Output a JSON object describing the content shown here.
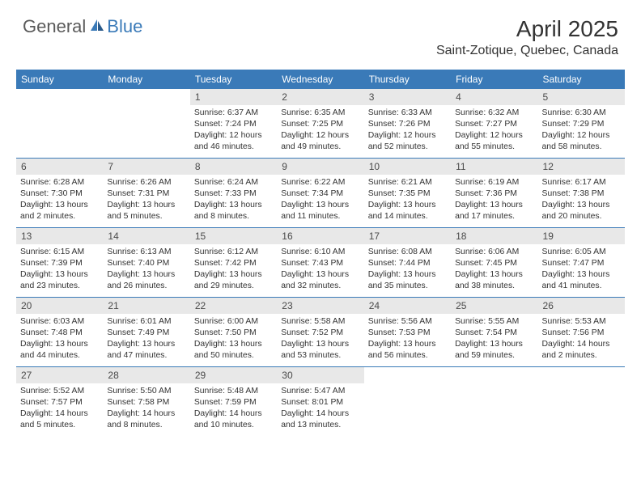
{
  "header": {
    "logo_part1": "General",
    "logo_part2": "Blue",
    "month_title": "April 2025",
    "location": "Saint-Zotique, Quebec, Canada"
  },
  "styling": {
    "header_bg": "#3a7ab8",
    "header_text_color": "#ffffff",
    "day_number_bg": "#e8e8e8",
    "day_number_color": "#4a4a4a",
    "body_bg": "#ffffff",
    "text_color": "#333333",
    "divider_color": "#3a7ab8",
    "title_fontsize": 28,
    "location_fontsize": 16,
    "weekday_fontsize": 12,
    "daynum_fontsize": 12,
    "detail_fontsize": 10.4
  },
  "weekdays": [
    "Sunday",
    "Monday",
    "Tuesday",
    "Wednesday",
    "Thursday",
    "Friday",
    "Saturday"
  ],
  "weeks": [
    [
      null,
      null,
      {
        "n": "1",
        "sunrise": "6:37 AM",
        "sunset": "7:24 PM",
        "daylight": "12 hours and 46 minutes."
      },
      {
        "n": "2",
        "sunrise": "6:35 AM",
        "sunset": "7:25 PM",
        "daylight": "12 hours and 49 minutes."
      },
      {
        "n": "3",
        "sunrise": "6:33 AM",
        "sunset": "7:26 PM",
        "daylight": "12 hours and 52 minutes."
      },
      {
        "n": "4",
        "sunrise": "6:32 AM",
        "sunset": "7:27 PM",
        "daylight": "12 hours and 55 minutes."
      },
      {
        "n": "5",
        "sunrise": "6:30 AM",
        "sunset": "7:29 PM",
        "daylight": "12 hours and 58 minutes."
      }
    ],
    [
      {
        "n": "6",
        "sunrise": "6:28 AM",
        "sunset": "7:30 PM",
        "daylight": "13 hours and 2 minutes."
      },
      {
        "n": "7",
        "sunrise": "6:26 AM",
        "sunset": "7:31 PM",
        "daylight": "13 hours and 5 minutes."
      },
      {
        "n": "8",
        "sunrise": "6:24 AM",
        "sunset": "7:33 PM",
        "daylight": "13 hours and 8 minutes."
      },
      {
        "n": "9",
        "sunrise": "6:22 AM",
        "sunset": "7:34 PM",
        "daylight": "13 hours and 11 minutes."
      },
      {
        "n": "10",
        "sunrise": "6:21 AM",
        "sunset": "7:35 PM",
        "daylight": "13 hours and 14 minutes."
      },
      {
        "n": "11",
        "sunrise": "6:19 AM",
        "sunset": "7:36 PM",
        "daylight": "13 hours and 17 minutes."
      },
      {
        "n": "12",
        "sunrise": "6:17 AM",
        "sunset": "7:38 PM",
        "daylight": "13 hours and 20 minutes."
      }
    ],
    [
      {
        "n": "13",
        "sunrise": "6:15 AM",
        "sunset": "7:39 PM",
        "daylight": "13 hours and 23 minutes."
      },
      {
        "n": "14",
        "sunrise": "6:13 AM",
        "sunset": "7:40 PM",
        "daylight": "13 hours and 26 minutes."
      },
      {
        "n": "15",
        "sunrise": "6:12 AM",
        "sunset": "7:42 PM",
        "daylight": "13 hours and 29 minutes."
      },
      {
        "n": "16",
        "sunrise": "6:10 AM",
        "sunset": "7:43 PM",
        "daylight": "13 hours and 32 minutes."
      },
      {
        "n": "17",
        "sunrise": "6:08 AM",
        "sunset": "7:44 PM",
        "daylight": "13 hours and 35 minutes."
      },
      {
        "n": "18",
        "sunrise": "6:06 AM",
        "sunset": "7:45 PM",
        "daylight": "13 hours and 38 minutes."
      },
      {
        "n": "19",
        "sunrise": "6:05 AM",
        "sunset": "7:47 PM",
        "daylight": "13 hours and 41 minutes."
      }
    ],
    [
      {
        "n": "20",
        "sunrise": "6:03 AM",
        "sunset": "7:48 PM",
        "daylight": "13 hours and 44 minutes."
      },
      {
        "n": "21",
        "sunrise": "6:01 AM",
        "sunset": "7:49 PM",
        "daylight": "13 hours and 47 minutes."
      },
      {
        "n": "22",
        "sunrise": "6:00 AM",
        "sunset": "7:50 PM",
        "daylight": "13 hours and 50 minutes."
      },
      {
        "n": "23",
        "sunrise": "5:58 AM",
        "sunset": "7:52 PM",
        "daylight": "13 hours and 53 minutes."
      },
      {
        "n": "24",
        "sunrise": "5:56 AM",
        "sunset": "7:53 PM",
        "daylight": "13 hours and 56 minutes."
      },
      {
        "n": "25",
        "sunrise": "5:55 AM",
        "sunset": "7:54 PM",
        "daylight": "13 hours and 59 minutes."
      },
      {
        "n": "26",
        "sunrise": "5:53 AM",
        "sunset": "7:56 PM",
        "daylight": "14 hours and 2 minutes."
      }
    ],
    [
      {
        "n": "27",
        "sunrise": "5:52 AM",
        "sunset": "7:57 PM",
        "daylight": "14 hours and 5 minutes."
      },
      {
        "n": "28",
        "sunrise": "5:50 AM",
        "sunset": "7:58 PM",
        "daylight": "14 hours and 8 minutes."
      },
      {
        "n": "29",
        "sunrise": "5:48 AM",
        "sunset": "7:59 PM",
        "daylight": "14 hours and 10 minutes."
      },
      {
        "n": "30",
        "sunrise": "5:47 AM",
        "sunset": "8:01 PM",
        "daylight": "14 hours and 13 minutes."
      },
      null,
      null,
      null
    ]
  ],
  "labels": {
    "sunrise_prefix": "Sunrise: ",
    "sunset_prefix": "Sunset: ",
    "daylight_prefix": "Daylight: "
  }
}
